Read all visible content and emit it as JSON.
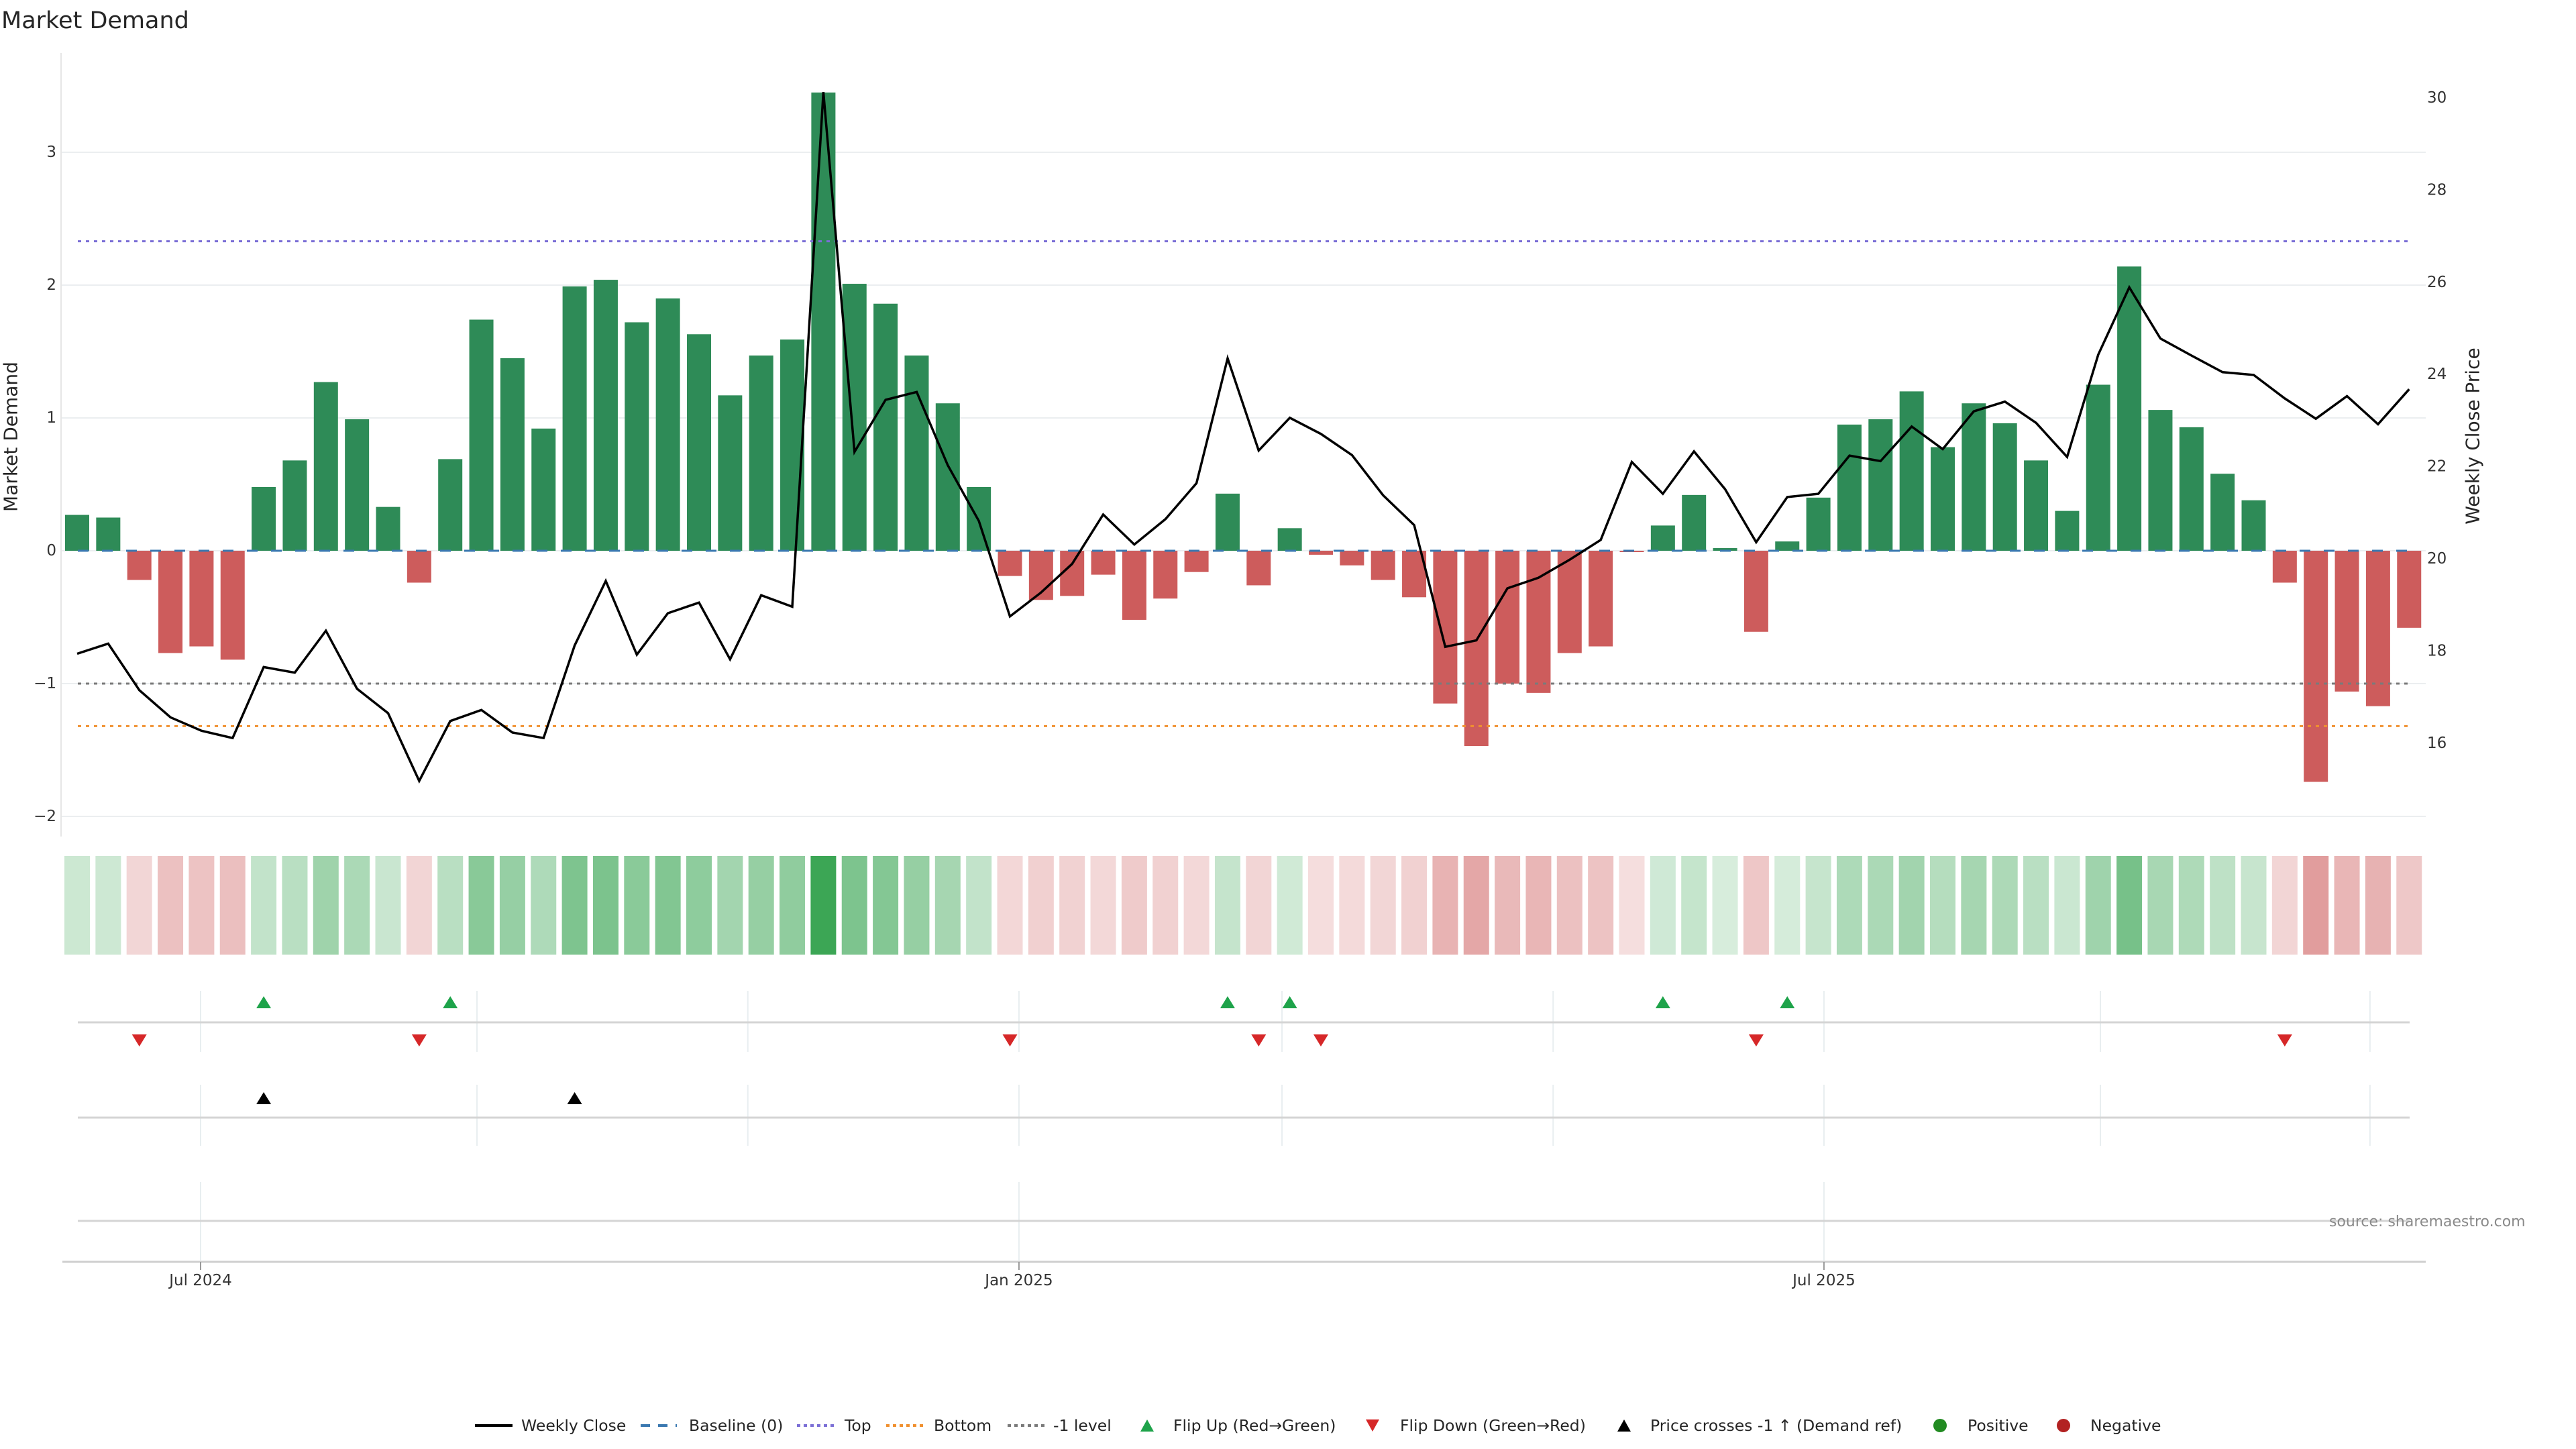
{
  "title": "Market Demand",
  "source": "source: sharemaestro.com",
  "colors": {
    "positive_bar": "#2e8b57",
    "negative_bar": "#cd5c5c",
    "strip_positive_base": "#3ca655",
    "strip_negative_base": "#cd5c5c",
    "price_line": "#000000",
    "baseline": "#3a78b0",
    "top": "#7b6fd6",
    "bottom": "#f0902f",
    "minus_one": "#7a7a7a",
    "flip_up": "#1ea34a",
    "flip_down": "#d62728",
    "price_cross": "#000000",
    "positive_dot": "#228b22",
    "negative_dot": "#b22222"
  },
  "chart_data": {
    "type": "bar",
    "title": "Market Demand",
    "xlabel": "",
    "ylabel": "Market Demand",
    "y2label": "Weekly Close Price",
    "ylim": [
      -2.15,
      3.75
    ],
    "y2lim": [
      13.97,
      30.98
    ],
    "grid": true,
    "yticks": [
      3,
      2,
      1,
      0,
      -1,
      -2
    ],
    "ytick_labels": [
      "3",
      "2",
      "1",
      "0",
      "−1",
      "−2"
    ],
    "y2ticks": [
      30,
      28,
      26,
      24,
      22,
      20,
      18,
      16
    ],
    "y2tick_labels": [
      "30",
      "28",
      "26",
      "24",
      "22",
      "20",
      "18",
      "16"
    ],
    "x_unit": "week index (1 = first weekly bar)",
    "xticks": [
      {
        "label": "Jul 2024",
        "week": 4.97
      },
      {
        "label": "Jan 2025",
        "week": 31.29
      },
      {
        "label": "Jul 2025",
        "week": 57.18
      }
    ],
    "minor_x_grid_weeks": [
      13.86,
      22.57,
      39.75,
      48.47,
      66.07,
      74.74
    ],
    "series": [
      {
        "name": "Market Demand",
        "type": "bar",
        "axis": "left",
        "values": [
          0.27,
          0.25,
          -0.22,
          -0.77,
          -0.72,
          -0.82,
          0.48,
          0.68,
          1.27,
          0.99,
          0.33,
          -0.24,
          0.69,
          1.74,
          1.45,
          0.92,
          1.99,
          2.04,
          1.72,
          1.9,
          1.63,
          1.17,
          1.47,
          1.59,
          3.45,
          2.01,
          1.86,
          1.47,
          1.11,
          0.48,
          -0.19,
          -0.37,
          -0.34,
          -0.18,
          -0.52,
          -0.36,
          -0.16,
          0.43,
          -0.26,
          0.17,
          -0.03,
          -0.11,
          -0.22,
          -0.35,
          -1.15,
          -1.47,
          -1.0,
          -1.07,
          -0.77,
          -0.72,
          -0.01,
          0.19,
          0.42,
          0.02,
          -0.61,
          0.07,
          0.4,
          0.95,
          0.99,
          1.2,
          0.78,
          1.11,
          0.96,
          0.68,
          0.3,
          1.25,
          2.14,
          1.06,
          0.93,
          0.58,
          0.38,
          -0.24,
          -1.74,
          -1.06,
          -1.17,
          -0.58
        ]
      },
      {
        "name": "Weekly Close",
        "type": "line",
        "axis": "right",
        "values": [
          17.94,
          18.16,
          17.15,
          16.56,
          16.27,
          16.11,
          17.65,
          17.53,
          18.44,
          17.18,
          16.65,
          15.18,
          16.48,
          16.72,
          16.23,
          16.11,
          18.12,
          19.52,
          17.92,
          18.82,
          19.05,
          17.82,
          19.21,
          18.96,
          30.13,
          22.32,
          23.45,
          23.62,
          22.03,
          20.82,
          18.75,
          19.27,
          19.89,
          20.96,
          20.31,
          20.86,
          21.64,
          24.35,
          22.35,
          23.06,
          22.71,
          22.25,
          21.38,
          20.73,
          18.09,
          18.23,
          19.36,
          19.59,
          19.98,
          20.41,
          22.1,
          21.41,
          22.33,
          21.51,
          20.36,
          21.34,
          21.41,
          22.24,
          22.12,
          22.87,
          22.38,
          23.2,
          23.41,
          22.95,
          22.21,
          24.43,
          25.89,
          24.78,
          24.41,
          24.05,
          23.99,
          23.48,
          23.04,
          23.53,
          22.92,
          23.68
        ]
      }
    ],
    "reference_lines": [
      {
        "name": "Baseline (0)",
        "y": 0,
        "style": "dashed"
      },
      {
        "name": "Top",
        "y": 2.33,
        "style": "dotted"
      },
      {
        "name": "Bottom",
        "y": -1.32,
        "style": "dotted"
      },
      {
        "name": "-1 level",
        "y": -1.0,
        "style": "dotted"
      }
    ],
    "heat_strip": "one cell per week, green for positive demand and red for negative, intensity proportional to magnitude",
    "flip_up_weeks": [
      7,
      13,
      38,
      40,
      52,
      56
    ],
    "flip_down_weeks": [
      3,
      12,
      31,
      39,
      41,
      55,
      72
    ],
    "price_cross_weeks": [
      7,
      17
    ],
    "legend_position": "bottom",
    "legend": [
      {
        "label": "Weekly Close",
        "kind": "line"
      },
      {
        "label": "Baseline (0)",
        "kind": "dashed"
      },
      {
        "label": "Top",
        "kind": "dotted-top"
      },
      {
        "label": "Bottom",
        "kind": "dotted-bottom"
      },
      {
        "label": "-1 level",
        "kind": "dotted-minus-one"
      },
      {
        "label": "Flip Up (Red→Green)",
        "kind": "triangle-up-green"
      },
      {
        "label": "Flip Down (Green→Red)",
        "kind": "triangle-down-red"
      },
      {
        "label": "Price crosses -1 ↑ (Demand ref)",
        "kind": "triangle-up-black"
      },
      {
        "label": "Positive",
        "kind": "dot-green"
      },
      {
        "label": "Negative",
        "kind": "dot-red"
      }
    ]
  }
}
